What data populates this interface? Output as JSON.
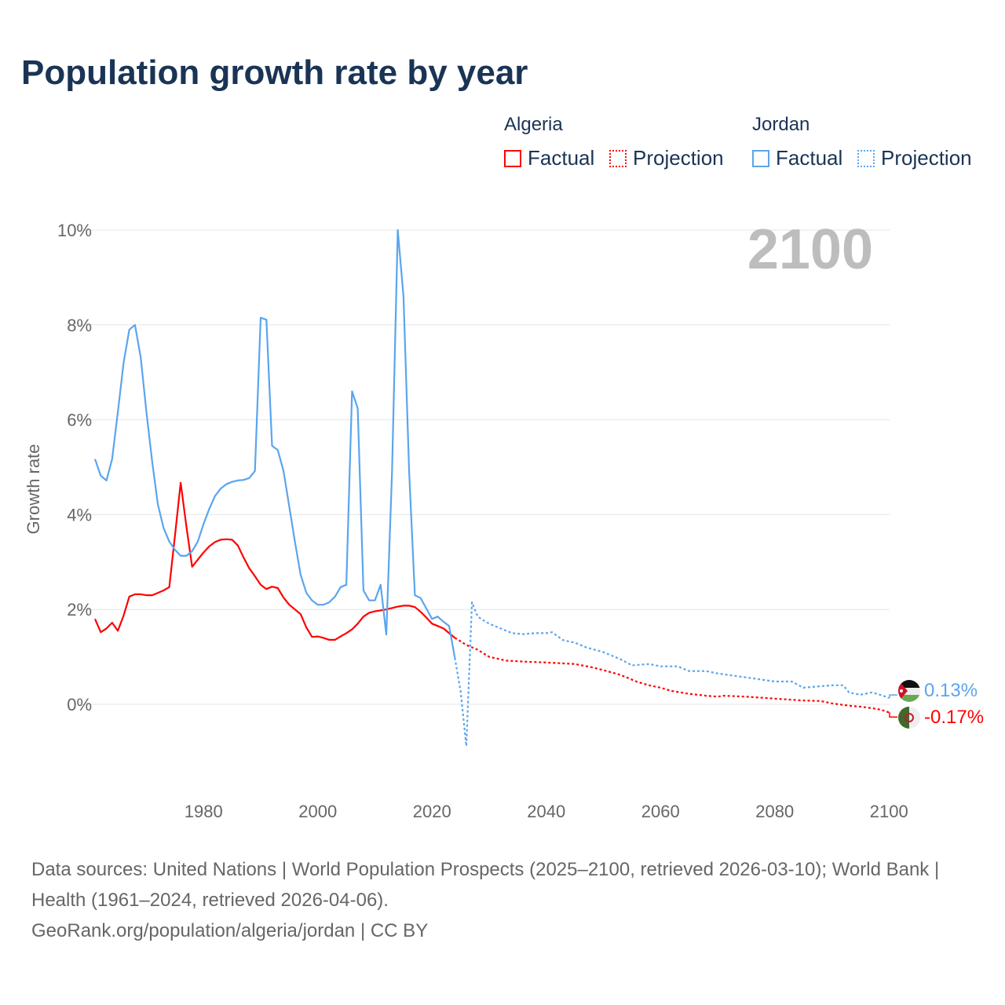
{
  "title": "Population growth rate by year",
  "legend": {
    "groups": [
      {
        "name": "Algeria",
        "factual": "Factual",
        "projection": "Projection",
        "color": "#ff0000"
      },
      {
        "name": "Jordan",
        "factual": "Factual",
        "projection": "Projection",
        "color": "#5aa5ee"
      }
    ]
  },
  "year_label": "2100",
  "end_labels": {
    "jordan": "0.13%",
    "algeria": "-0.17%"
  },
  "footer": {
    "sources": "Data sources: United Nations | World Population Prospects (2025–2100, retrieved 2026-03-10); World Bank | Health (1961–2024, retrieved 2026-04-06).",
    "credit": "GeoRank.org/population/algeria/jordan | CC BY"
  },
  "chart_data": {
    "type": "line",
    "title": "Population growth rate by year",
    "xlabel": "",
    "ylabel": "Growth rate",
    "xlim": [
      1961,
      2100
    ],
    "ylim": [
      -1.5,
      10
    ],
    "xticks": [
      1980,
      2000,
      2020,
      2040,
      2060,
      2080,
      2100
    ],
    "yticks": [
      0,
      2,
      4,
      6,
      8,
      10
    ],
    "ytick_labels": [
      "0%",
      "2%",
      "4%",
      "6%",
      "8%",
      "10%"
    ],
    "grid": true,
    "legend_position": "top-right",
    "series": [
      {
        "name": "Algeria Factual",
        "color": "#ff0000",
        "style": "solid",
        "x": [
          1961,
          1962,
          1963,
          1964,
          1965,
          1966,
          1967,
          1968,
          1969,
          1970,
          1971,
          1972,
          1973,
          1974,
          1975,
          1976,
          1977,
          1978,
          1979,
          1980,
          1981,
          1982,
          1983,
          1984,
          1985,
          1986,
          1987,
          1988,
          1989,
          1990,
          1991,
          1992,
          1993,
          1994,
          1995,
          1996,
          1997,
          1998,
          1999,
          2000,
          2001,
          2002,
          2003,
          2004,
          2005,
          2006,
          2007,
          2008,
          2009,
          2010,
          2011,
          2012,
          2013,
          2014,
          2015,
          2016,
          2017,
          2018,
          2019,
          2020,
          2021,
          2022,
          2023,
          2024
        ],
        "y": [
          1.8,
          1.52,
          1.6,
          1.72,
          1.55,
          1.87,
          2.27,
          2.32,
          2.32,
          2.3,
          2.3,
          2.35,
          2.4,
          2.47,
          3.55,
          4.67,
          3.75,
          2.9,
          3.05,
          3.2,
          3.33,
          3.42,
          3.47,
          3.48,
          3.47,
          3.35,
          3.1,
          2.87,
          2.7,
          2.52,
          2.43,
          2.48,
          2.45,
          2.25,
          2.1,
          2.0,
          1.9,
          1.62,
          1.42,
          1.43,
          1.4,
          1.36,
          1.36,
          1.43,
          1.5,
          1.58,
          1.7,
          1.85,
          1.93,
          1.96,
          1.98,
          2.0,
          2.03,
          2.06,
          2.08,
          2.08,
          2.05,
          1.95,
          1.83,
          1.7,
          1.65,
          1.6,
          1.5,
          1.4
        ]
      },
      {
        "name": "Algeria Projection",
        "color": "#ff0000",
        "style": "dotted",
        "x": [
          2024,
          2025,
          2026,
          2028,
          2030,
          2033,
          2036,
          2040,
          2045,
          2048,
          2050,
          2053,
          2056,
          2058,
          2060,
          2062,
          2065,
          2068,
          2070,
          2071,
          2075,
          2080,
          2085,
          2088,
          2090,
          2093,
          2095,
          2098,
          2099,
          2100
        ],
        "y": [
          1.4,
          1.33,
          1.25,
          1.15,
          1.0,
          0.92,
          0.9,
          0.88,
          0.85,
          0.78,
          0.72,
          0.62,
          0.47,
          0.4,
          0.35,
          0.28,
          0.22,
          0.18,
          0.16,
          0.18,
          0.16,
          0.12,
          0.08,
          0.07,
          0.02,
          -0.03,
          -0.05,
          -0.1,
          -0.13,
          -0.17
        ]
      },
      {
        "name": "Jordan Factual",
        "color": "#5aa5ee",
        "style": "solid",
        "x": [
          1961,
          1962,
          1963,
          1964,
          1965,
          1966,
          1967,
          1968,
          1969,
          1970,
          1971,
          1972,
          1973,
          1974,
          1975,
          1976,
          1977,
          1978,
          1979,
          1980,
          1981,
          1982,
          1983,
          1984,
          1985,
          1986,
          1987,
          1988,
          1989,
          1990,
          1991,
          1992,
          1993,
          1994,
          1995,
          1996,
          1997,
          1998,
          1999,
          2000,
          2001,
          2002,
          2003,
          2004,
          2005,
          2006,
          2007,
          2008,
          2009,
          2010,
          2011,
          2012,
          2013,
          2014,
          2015,
          2016,
          2017,
          2018,
          2019,
          2020,
          2021,
          2022,
          2023,
          2024
        ],
        "y": [
          5.17,
          4.82,
          4.72,
          5.17,
          6.16,
          7.2,
          7.9,
          8.0,
          7.32,
          6.16,
          5.12,
          4.22,
          3.72,
          3.43,
          3.26,
          3.13,
          3.13,
          3.23,
          3.43,
          3.8,
          4.12,
          4.39,
          4.55,
          4.64,
          4.69,
          4.72,
          4.73,
          4.77,
          4.92,
          8.15,
          8.11,
          5.45,
          5.36,
          4.92,
          4.17,
          3.43,
          2.73,
          2.35,
          2.19,
          2.1,
          2.1,
          2.15,
          2.27,
          2.47,
          2.52,
          6.6,
          6.24,
          2.4,
          2.19,
          2.19,
          2.52,
          1.47,
          4.9,
          10.0,
          8.6,
          4.9,
          2.3,
          2.24,
          2.02,
          1.8,
          1.85,
          1.74,
          1.65,
          0.98
        ]
      },
      {
        "name": "Jordan Projection",
        "color": "#5aa5ee",
        "style": "dotted",
        "x": [
          2024,
          2025,
          2026,
          2027,
          2028,
          2029,
          2030,
          2032,
          2034,
          2036,
          2038,
          2040,
          2041,
          2043,
          2045,
          2047,
          2050,
          2053,
          2055,
          2058,
          2060,
          2063,
          2065,
          2068,
          2070,
          2073,
          2076,
          2080,
          2083,
          2085,
          2088,
          2090,
          2092,
          2093,
          2095,
          2097,
          2099,
          2100
        ],
        "y": [
          0.98,
          0.28,
          -0.88,
          2.15,
          1.85,
          1.77,
          1.7,
          1.6,
          1.5,
          1.48,
          1.5,
          1.5,
          1.52,
          1.35,
          1.3,
          1.2,
          1.1,
          0.95,
          0.82,
          0.85,
          0.8,
          0.8,
          0.7,
          0.7,
          0.65,
          0.6,
          0.55,
          0.48,
          0.48,
          0.35,
          0.38,
          0.4,
          0.4,
          0.25,
          0.2,
          0.25,
          0.18,
          0.13
        ]
      }
    ]
  }
}
